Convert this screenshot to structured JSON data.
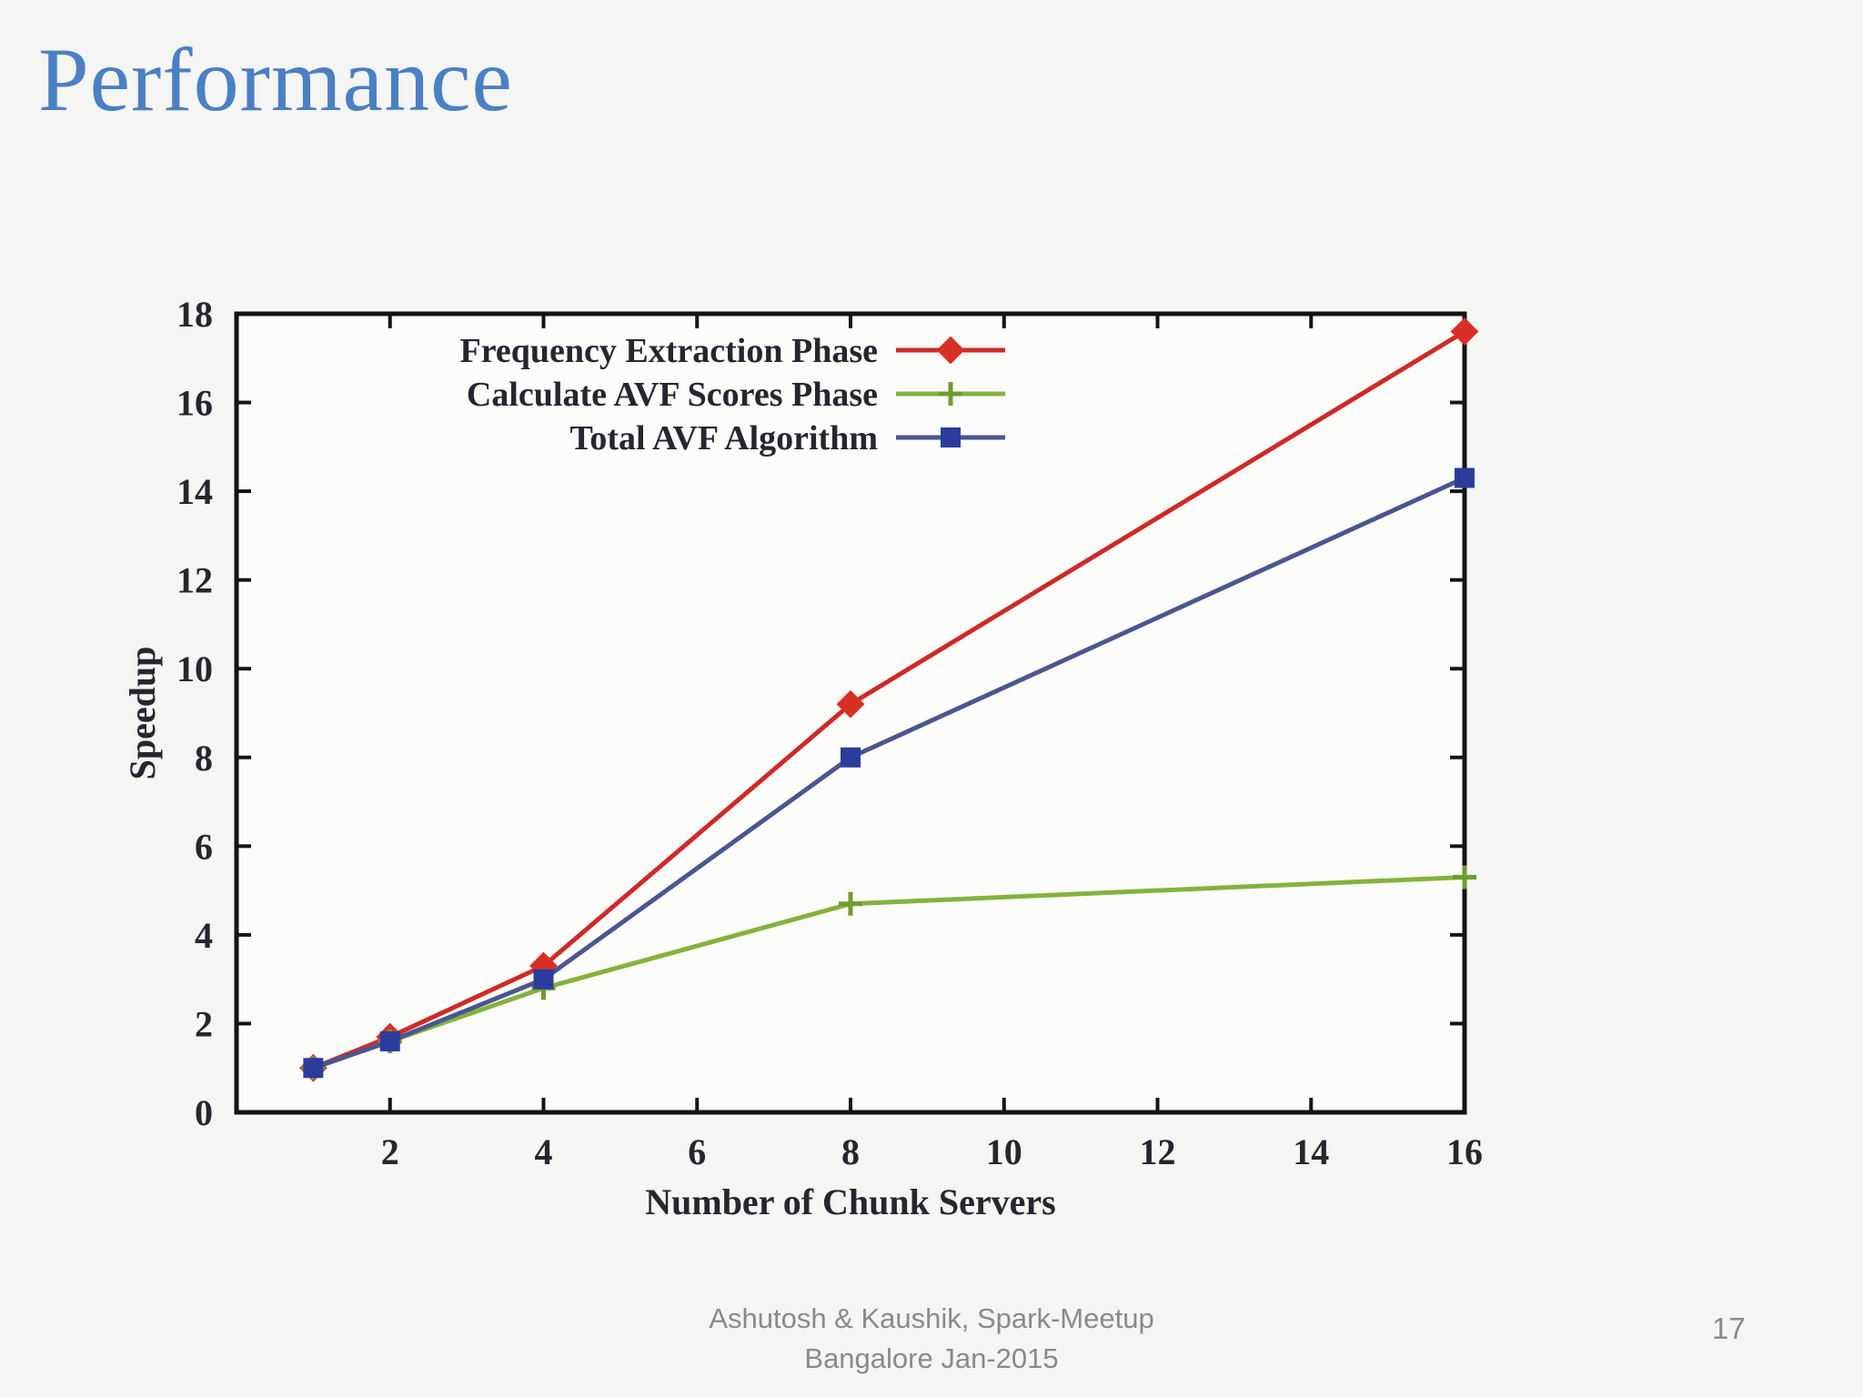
{
  "slide": {
    "title": "Performance",
    "page_number": "17"
  },
  "footer": {
    "line1": "Ashutosh & Kaushik, Spark-Meetup",
    "line2": "Bangalore Jan-2015"
  },
  "colors": {
    "background": "#f5f5f3",
    "title": "#4a80c4",
    "footer_text": "#8a8a8a",
    "chart_text": "#26262e",
    "axis": "#141414",
    "plot_background": "#fcfcfb"
  },
  "chart_data": {
    "type": "line",
    "title": "",
    "xlabel": "Number of Chunk Servers",
    "ylabel": "Speedup",
    "x": [
      1,
      2,
      4,
      8,
      16
    ],
    "xlim": [
      0,
      16
    ],
    "ylim": [
      0,
      18
    ],
    "xticks": [
      2,
      4,
      6,
      8,
      10,
      12,
      14,
      16
    ],
    "yticks": [
      0,
      2,
      4,
      6,
      8,
      10,
      12,
      14,
      16,
      18
    ],
    "grid": false,
    "legend_position": "inside-top-center",
    "series": [
      {
        "name": "Frequency Extraction Phase",
        "color": "#ce2a27",
        "marker": "diamond",
        "marker_color": "#d93025",
        "values": [
          1.0,
          1.7,
          3.3,
          9.2,
          17.6
        ]
      },
      {
        "name": "Calculate AVF Scores Phase",
        "color": "#85b23c",
        "marker": "plus",
        "marker_color": "#6f9c2f",
        "values": [
          1.0,
          1.6,
          2.8,
          4.7,
          5.3
        ]
      },
      {
        "name": "Total AVF Algorithm",
        "color": "#4a5690",
        "marker": "square",
        "marker_color": "#2c3c9c",
        "values": [
          1.0,
          1.6,
          3.0,
          8.0,
          14.3
        ]
      }
    ]
  }
}
